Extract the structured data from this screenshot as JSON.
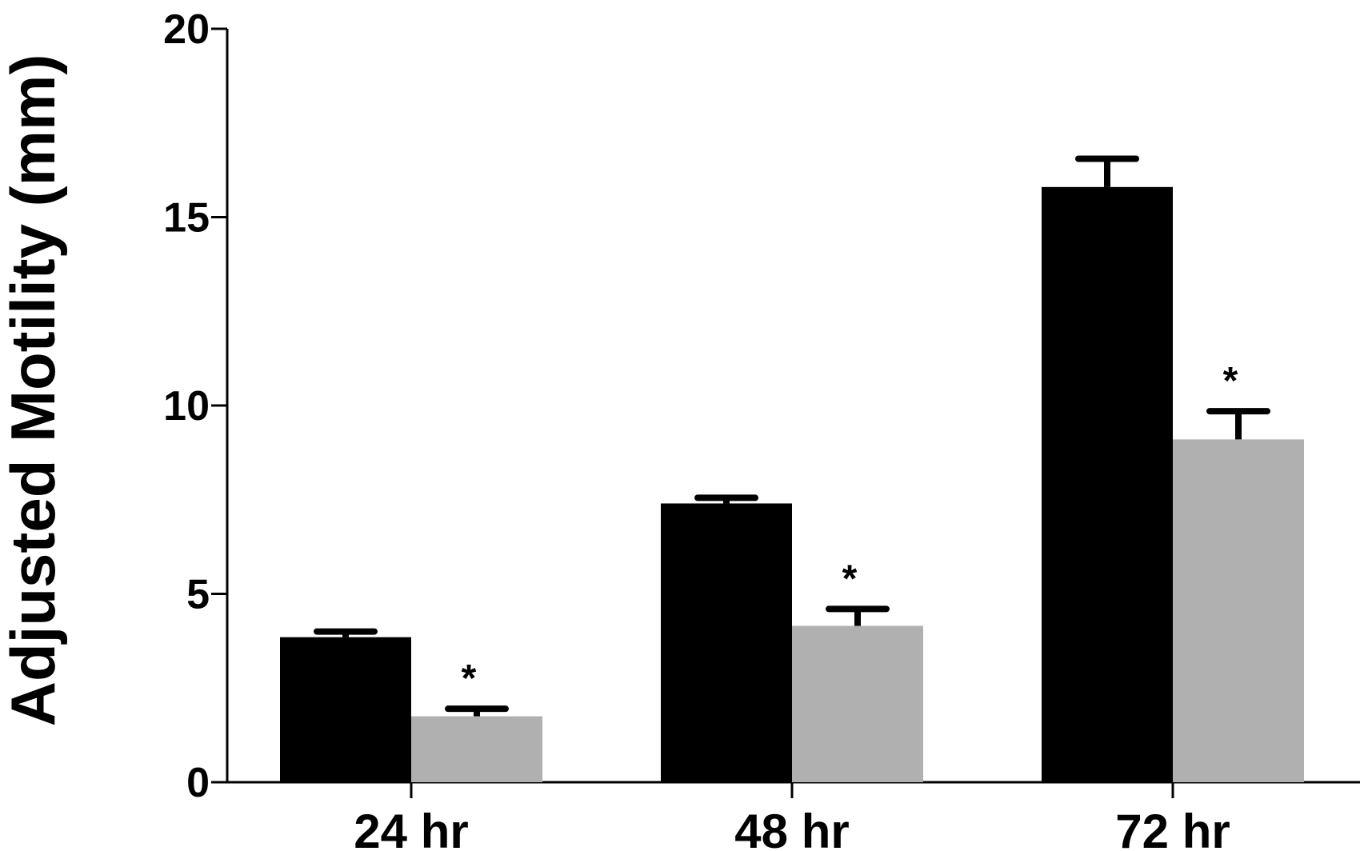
{
  "chart_data": {
    "type": "bar",
    "ylabel": "Adjusted Motility (mm)",
    "xlabel": "",
    "ylim": [
      0,
      20
    ],
    "yticks": [
      0,
      5,
      10,
      15,
      20
    ],
    "categories": [
      "24 hr",
      "48 hr",
      "72 hr"
    ],
    "series": [
      {
        "color": "#000000",
        "values": [
          3.85,
          7.4,
          15.8
        ],
        "errors": [
          0.15,
          0.15,
          0.75
        ],
        "significance": [
          "",
          "",
          ""
        ]
      },
      {
        "color": "#b0b0b1",
        "values": [
          1.75,
          4.15,
          9.1
        ],
        "errors": [
          0.2,
          0.45,
          0.75
        ],
        "significance": [
          "*",
          "*",
          "*"
        ]
      }
    ],
    "grid": false,
    "legend": "none"
  }
}
